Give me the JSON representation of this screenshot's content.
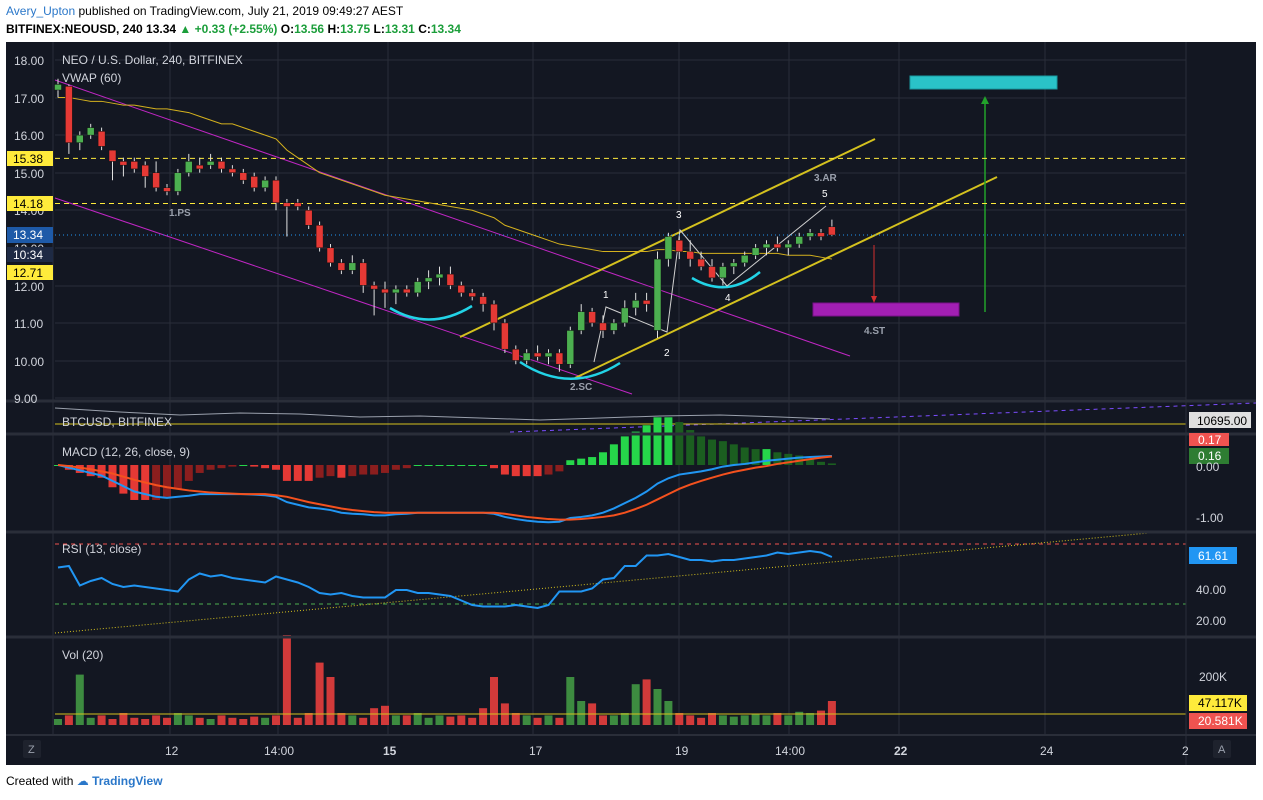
{
  "header": {
    "author": "Avery_Upton",
    "published_text": "published on TradingView.com, July 21, 2019 09:49:27 AEST",
    "symbol": "BITFINEX:NEOUSD, 240",
    "last": "13.34",
    "change_arrow": "▲",
    "change": "+0.33 (+2.55%)",
    "o_label": "O:",
    "o_value": "13.56",
    "h_label": "H:",
    "h_value": "13.75",
    "l_label": "L:",
    "l_value": "13.31",
    "c_label": "C:",
    "c_value": "13.34"
  },
  "footer": {
    "created_with": "Created with",
    "brand": "TradingView"
  },
  "colors": {
    "background": "#131722",
    "grid": "#2a2e39",
    "up": "#4caf50",
    "down": "#e53935",
    "channel": "#d4c11e",
    "wedge": "#c026c4",
    "arc": "#22d3e6",
    "target_box": "#2ac3c8",
    "target_box2": "#a21fb3",
    "vwap": "#d4b11e",
    "macd": "#2196f3",
    "signal": "#f4511e",
    "rsi": "#2196f3",
    "up_arrow": "#22a22b",
    "down_arrow": "#d32f2f"
  },
  "price_pane": {
    "title": "NEO / U.S. Dollar, 240, BITFINEX",
    "indicator": "VWAP (60)",
    "axis_ticks": [
      "18.00",
      "17.00",
      "16.00",
      "15.00",
      "14.00",
      "13.00",
      "12.00",
      "11.00",
      "10.00",
      "9.00"
    ],
    "flags": [
      {
        "text": "15.38",
        "kind": "yellow"
      },
      {
        "text": "14.18",
        "kind": "yellow"
      },
      {
        "text": "13.34",
        "kind": "blue"
      },
      {
        "text": "10:34",
        "kind": "dark"
      },
      {
        "text": "12.71",
        "kind": "yellow"
      }
    ],
    "annotations": [
      {
        "text": "1.PS"
      },
      {
        "text": "2.SC"
      },
      {
        "text": "3.AR"
      },
      {
        "text": "4.ST"
      },
      {
        "text": "1"
      },
      {
        "text": "2"
      },
      {
        "text": "3"
      },
      {
        "text": "4"
      },
      {
        "text": "5"
      }
    ]
  },
  "btc_pane": {
    "title": "BTCUSD, BITFINEX",
    "flag": "10695.00"
  },
  "macd_pane": {
    "title": "MACD (12, 26, close, 9)",
    "axis_ticks": [
      "0.00",
      "-1.00"
    ],
    "flags": [
      {
        "text": "0.17",
        "kind": "red"
      },
      {
        "text": "0.16",
        "kind": "green"
      }
    ]
  },
  "rsi_pane": {
    "title": "RSI (13, close)",
    "axis_ticks": [
      "40.00",
      "20.00"
    ],
    "flag": "61.61"
  },
  "vol_pane": {
    "title": "Vol (20)",
    "axis_ticks": [
      "200K"
    ],
    "flags": [
      {
        "text": "47.117K",
        "kind": "yellow"
      },
      {
        "text": "20.581K",
        "kind": "red"
      }
    ]
  },
  "time_axis": {
    "ticks": [
      "12",
      "14:00",
      "15",
      "17",
      "19",
      "14:00",
      "22",
      "24",
      "2"
    ],
    "left_button": "Z",
    "right_button": "A"
  },
  "chart_data": {
    "type": "candlestick",
    "title": "NEO / U.S. Dollar, 240, BITFINEX",
    "ylim": [
      9.0,
      18.0
    ],
    "candles": [
      {
        "o": 17.2,
        "h": 17.5,
        "l": 17.0,
        "c": 17.35
      },
      {
        "o": 17.3,
        "h": 17.35,
        "l": 15.5,
        "c": 15.8
      },
      {
        "o": 15.8,
        "h": 16.1,
        "l": 15.6,
        "c": 16.0
      },
      {
        "o": 16.0,
        "h": 16.3,
        "l": 15.9,
        "c": 16.2
      },
      {
        "o": 16.1,
        "h": 16.2,
        "l": 15.6,
        "c": 15.7
      },
      {
        "o": 15.6,
        "h": 15.6,
        "l": 14.8,
        "c": 15.3
      },
      {
        "o": 15.3,
        "h": 15.4,
        "l": 14.9,
        "c": 15.2
      },
      {
        "o": 15.3,
        "h": 15.4,
        "l": 15.0,
        "c": 15.1
      },
      {
        "o": 15.2,
        "h": 15.3,
        "l": 14.6,
        "c": 14.9
      },
      {
        "o": 15.0,
        "h": 15.3,
        "l": 14.5,
        "c": 14.6
      },
      {
        "o": 14.6,
        "h": 14.7,
        "l": 14.4,
        "c": 14.5
      },
      {
        "o": 14.5,
        "h": 15.1,
        "l": 14.4,
        "c": 15.0
      },
      {
        "o": 15.0,
        "h": 15.5,
        "l": 14.9,
        "c": 15.3
      },
      {
        "o": 15.2,
        "h": 15.4,
        "l": 15.0,
        "c": 15.1
      },
      {
        "o": 15.2,
        "h": 15.5,
        "l": 15.1,
        "c": 15.3
      },
      {
        "o": 15.3,
        "h": 15.4,
        "l": 15.0,
        "c": 15.1
      },
      {
        "o": 15.1,
        "h": 15.2,
        "l": 14.9,
        "c": 15.0
      },
      {
        "o": 15.0,
        "h": 15.1,
        "l": 14.7,
        "c": 14.8
      },
      {
        "o": 14.9,
        "h": 15.0,
        "l": 14.5,
        "c": 14.6
      },
      {
        "o": 14.6,
        "h": 14.9,
        "l": 14.5,
        "c": 14.8
      },
      {
        "o": 14.8,
        "h": 14.9,
        "l": 14.0,
        "c": 14.2
      },
      {
        "o": 14.2,
        "h": 14.3,
        "l": 13.3,
        "c": 14.1
      },
      {
        "o": 14.2,
        "h": 14.3,
        "l": 14.0,
        "c": 14.1
      },
      {
        "o": 14.0,
        "h": 14.1,
        "l": 13.5,
        "c": 13.6
      },
      {
        "o": 13.6,
        "h": 13.7,
        "l": 12.9,
        "c": 13.0
      },
      {
        "o": 13.0,
        "h": 13.1,
        "l": 12.5,
        "c": 12.6
      },
      {
        "o": 12.6,
        "h": 12.7,
        "l": 12.3,
        "c": 12.4
      },
      {
        "o": 12.4,
        "h": 12.8,
        "l": 12.3,
        "c": 12.6
      },
      {
        "o": 12.6,
        "h": 12.7,
        "l": 11.8,
        "c": 12.0
      },
      {
        "o": 12.0,
        "h": 12.1,
        "l": 11.2,
        "c": 11.9
      },
      {
        "o": 11.9,
        "h": 12.1,
        "l": 11.4,
        "c": 11.8
      },
      {
        "o": 11.8,
        "h": 12.0,
        "l": 11.5,
        "c": 11.9
      },
      {
        "o": 11.9,
        "h": 12.0,
        "l": 11.7,
        "c": 11.8
      },
      {
        "o": 11.8,
        "h": 12.2,
        "l": 11.7,
        "c": 12.1
      },
      {
        "o": 12.1,
        "h": 12.4,
        "l": 11.9,
        "c": 12.2
      },
      {
        "o": 12.2,
        "h": 12.5,
        "l": 12.0,
        "c": 12.3
      },
      {
        "o": 12.3,
        "h": 12.5,
        "l": 11.9,
        "c": 12.0
      },
      {
        "o": 12.0,
        "h": 12.1,
        "l": 11.7,
        "c": 11.8
      },
      {
        "o": 11.8,
        "h": 11.9,
        "l": 11.6,
        "c": 11.7
      },
      {
        "o": 11.7,
        "h": 11.8,
        "l": 11.3,
        "c": 11.5
      },
      {
        "o": 11.5,
        "h": 11.6,
        "l": 10.8,
        "c": 11.0
      },
      {
        "o": 11.0,
        "h": 11.1,
        "l": 10.2,
        "c": 10.3
      },
      {
        "o": 10.3,
        "h": 10.4,
        "l": 9.9,
        "c": 10.0
      },
      {
        "o": 10.0,
        "h": 10.3,
        "l": 9.9,
        "c": 10.2
      },
      {
        "o": 10.2,
        "h": 10.4,
        "l": 10.0,
        "c": 10.1
      },
      {
        "o": 10.1,
        "h": 10.3,
        "l": 9.9,
        "c": 10.2
      },
      {
        "o": 10.2,
        "h": 10.3,
        "l": 9.7,
        "c": 9.9
      },
      {
        "o": 9.9,
        "h": 10.9,
        "l": 9.8,
        "c": 10.8
      },
      {
        "o": 10.8,
        "h": 11.5,
        "l": 10.7,
        "c": 11.3
      },
      {
        "o": 11.3,
        "h": 11.4,
        "l": 10.9,
        "c": 11.0
      },
      {
        "o": 11.0,
        "h": 11.2,
        "l": 10.6,
        "c": 10.8
      },
      {
        "o": 10.8,
        "h": 11.1,
        "l": 10.7,
        "c": 11.0
      },
      {
        "o": 11.0,
        "h": 11.6,
        "l": 10.9,
        "c": 11.4
      },
      {
        "o": 11.4,
        "h": 11.8,
        "l": 11.2,
        "c": 11.6
      },
      {
        "o": 11.6,
        "h": 11.8,
        "l": 11.3,
        "c": 11.5
      },
      {
        "o": 10.8,
        "h": 12.9,
        "l": 10.6,
        "c": 12.7
      },
      {
        "o": 12.7,
        "h": 13.4,
        "l": 12.5,
        "c": 13.3
      },
      {
        "o": 13.2,
        "h": 13.3,
        "l": 12.7,
        "c": 12.9
      },
      {
        "o": 12.9,
        "h": 13.2,
        "l": 12.5,
        "c": 12.7
      },
      {
        "o": 12.7,
        "h": 12.9,
        "l": 12.4,
        "c": 12.5
      },
      {
        "o": 12.5,
        "h": 12.7,
        "l": 12.1,
        "c": 12.2
      },
      {
        "o": 12.2,
        "h": 12.6,
        "l": 12.0,
        "c": 12.5
      },
      {
        "o": 12.5,
        "h": 12.7,
        "l": 12.3,
        "c": 12.6
      },
      {
        "o": 12.6,
        "h": 12.9,
        "l": 12.5,
        "c": 12.8
      },
      {
        "o": 12.8,
        "h": 13.1,
        "l": 12.7,
        "c": 13.0
      },
      {
        "o": 13.0,
        "h": 13.2,
        "l": 12.8,
        "c": 13.1
      },
      {
        "o": 13.1,
        "h": 13.3,
        "l": 12.9,
        "c": 13.0
      },
      {
        "o": 13.0,
        "h": 13.2,
        "l": 12.8,
        "c": 13.1
      },
      {
        "o": 13.1,
        "h": 13.4,
        "l": 13.0,
        "c": 13.3
      },
      {
        "o": 13.3,
        "h": 13.5,
        "l": 13.2,
        "c": 13.4
      },
      {
        "o": 13.4,
        "h": 13.5,
        "l": 13.2,
        "c": 13.3
      },
      {
        "o": 13.56,
        "h": 13.75,
        "l": 13.31,
        "c": 13.34
      }
    ],
    "vwap": [
      17.0,
      17.0,
      16.95,
      16.9,
      16.9,
      16.85,
      16.8,
      16.8,
      16.75,
      16.7,
      16.7,
      16.65,
      16.6,
      16.5,
      16.4,
      16.3,
      16.3,
      16.2,
      16.1,
      16.0,
      15.9,
      15.6,
      15.4,
      15.2,
      15.0,
      14.9,
      14.8,
      14.7,
      14.6,
      14.5,
      14.4,
      14.35,
      14.3,
      14.25,
      14.2,
      14.15,
      14.1,
      14.05,
      14.0,
      13.9,
      13.8,
      13.6,
      13.5,
      13.4,
      13.3,
      13.2,
      13.1,
      13.05,
      13.0,
      12.95,
      12.9,
      12.9,
      12.9,
      12.9,
      12.9,
      12.95,
      12.95,
      12.9,
      12.9,
      12.85,
      12.85,
      12.85,
      12.85,
      12.85,
      12.85,
      12.85,
      12.85,
      12.8,
      12.8,
      12.8,
      12.75,
      12.7
    ],
    "levels": [
      15.38,
      14.18
    ],
    "macd": [
      0.0,
      -0.05,
      -0.1,
      -0.15,
      -0.2,
      -0.3,
      -0.4,
      -0.5,
      -0.55,
      -0.6,
      -0.62,
      -0.6,
      -0.58,
      -0.55,
      -0.55,
      -0.55,
      -0.55,
      -0.55,
      -0.56,
      -0.57,
      -0.6,
      -0.7,
      -0.75,
      -0.8,
      -0.82,
      -0.85,
      -0.9,
      -0.92,
      -0.93,
      -0.95,
      -0.95,
      -0.93,
      -0.92,
      -0.9,
      -0.9,
      -0.9,
      -0.9,
      -0.9,
      -0.9,
      -0.9,
      -0.92,
      -0.98,
      -1.02,
      -1.05,
      -1.07,
      -1.08,
      -1.07,
      -1.0,
      -0.98,
      -0.95,
      -0.9,
      -0.82,
      -0.72,
      -0.62,
      -0.5,
      -0.35,
      -0.25,
      -0.18,
      -0.15,
      -0.12,
      -0.08,
      -0.03,
      0.0,
      0.02,
      0.05,
      0.08,
      0.1,
      0.12,
      0.14,
      0.15,
      0.16,
      0.17
    ],
    "signal": [
      0.0,
      -0.02,
      -0.05,
      -0.08,
      -0.12,
      -0.16,
      -0.22,
      -0.28,
      -0.33,
      -0.38,
      -0.42,
      -0.45,
      -0.48,
      -0.5,
      -0.52,
      -0.53,
      -0.54,
      -0.55,
      -0.55,
      -0.55,
      -0.57,
      -0.6,
      -0.65,
      -0.7,
      -0.74,
      -0.78,
      -0.82,
      -0.85,
      -0.87,
      -0.89,
      -0.9,
      -0.9,
      -0.9,
      -0.9,
      -0.9,
      -0.9,
      -0.9,
      -0.9,
      -0.9,
      -0.9,
      -0.9,
      -0.92,
      -0.95,
      -0.98,
      -1.0,
      -1.02,
      -1.03,
      -1.03,
      -1.02,
      -1.0,
      -0.98,
      -0.95,
      -0.9,
      -0.83,
      -0.75,
      -0.65,
      -0.55,
      -0.45,
      -0.37,
      -0.3,
      -0.24,
      -0.18,
      -0.13,
      -0.09,
      -0.05,
      -0.02,
      0.02,
      0.05,
      0.08,
      0.11,
      0.14,
      0.16
    ],
    "rsi": [
      55,
      56,
      43,
      46,
      48,
      44,
      42,
      43,
      42,
      41,
      40,
      39,
      47,
      51,
      49,
      50,
      48,
      47,
      46,
      45,
      49,
      47,
      45,
      42,
      38,
      37,
      38,
      36,
      35,
      35,
      35,
      40,
      40,
      38,
      38,
      37,
      36,
      33,
      30,
      29,
      29,
      29,
      30,
      29,
      28,
      30,
      39,
      39,
      39,
      41,
      47,
      48,
      56,
      56,
      63,
      63,
      64,
      62,
      60,
      60,
      59,
      60,
      60,
      61,
      62,
      63,
      65,
      64,
      65,
      66,
      65,
      62
    ],
    "volume": [
      5,
      8,
      42,
      6,
      8,
      5,
      10,
      6,
      5,
      8,
      6,
      10,
      8,
      6,
      5,
      8,
      6,
      5,
      7,
      6,
      8,
      75,
      6,
      10,
      52,
      40,
      10,
      8,
      6,
      14,
      16,
      8,
      8,
      10,
      6,
      8,
      7,
      8,
      6,
      14,
      40,
      18,
      10,
      8,
      6,
      8,
      6,
      40,
      20,
      18,
      8,
      8,
      10,
      34,
      38,
      30,
      20,
      10,
      8,
      6,
      10,
      8,
      7,
      8,
      9,
      8,
      10,
      8,
      11,
      10,
      12,
      20
    ]
  }
}
